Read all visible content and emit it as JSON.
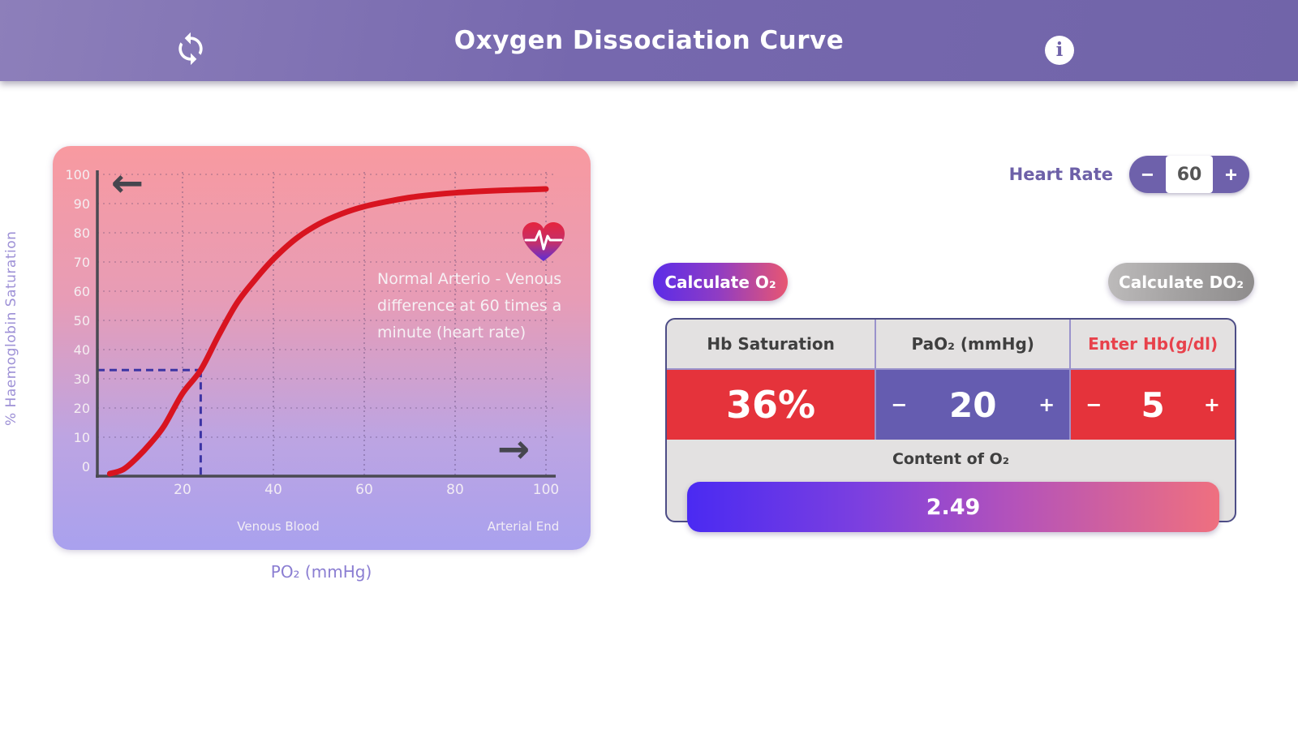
{
  "header": {
    "title": "Oxygen Dissociation Curve"
  },
  "icons": {
    "info_glyph": "i",
    "left_arrow": "←",
    "right_arrow": "→"
  },
  "heart_rate": {
    "label": "Heart Rate",
    "value": "60",
    "minus": "−",
    "plus": "+"
  },
  "buttons": {
    "calc_o2": "Calculate O₂",
    "calc_do2": "Calculate DO₂"
  },
  "table": {
    "headers": [
      "Hb Saturation",
      "PaO₂ (mmHg)",
      "Enter Hb(g/dl)"
    ],
    "hb_saturation": "36%",
    "pao2": "20",
    "hb": "5",
    "minus": "−",
    "plus": "+",
    "content_label": "Content of O₂",
    "content_value": "2.49"
  },
  "colors": {
    "header_purple": "#7668ae",
    "accent_purple": "#655cb0",
    "alert_red": "#e5333b",
    "curve_red": "#d81420",
    "marker_blue": "#3c34a4",
    "gradient_blue": "#4a2af2",
    "gradient_pink": "#ef707f"
  },
  "chart_data": {
    "type": "line",
    "title": "Oxygen Dissociation Curve",
    "xlabel": "PO₂ (mmHg)",
    "ylabel": "% Haemoglobin Saturation",
    "xlim": [
      0,
      102
    ],
    "ylim": [
      0,
      100
    ],
    "grid": true,
    "x_ticks": [
      20,
      40,
      60,
      80,
      100
    ],
    "y_ticks": [
      0,
      10,
      20,
      30,
      40,
      50,
      60,
      70,
      80,
      90,
      100
    ],
    "x_end_labels": [
      "Venous Blood",
      "Arterial End"
    ],
    "annotation": [
      "Normal Arterio - Venous",
      "difference at 60 times a",
      "minute (heart rate)"
    ],
    "series": [
      {
        "name": "Haemoglobin saturation curve",
        "color": "#d81420",
        "points": [
          [
            4,
            -2.5
          ],
          [
            7,
            -1
          ],
          [
            10,
            3
          ],
          [
            13,
            8
          ],
          [
            16,
            14
          ],
          [
            20,
            25
          ],
          [
            24,
            33
          ],
          [
            28,
            45
          ],
          [
            32,
            56
          ],
          [
            36,
            64
          ],
          [
            40,
            71
          ],
          [
            45,
            78
          ],
          [
            50,
            83
          ],
          [
            55,
            86.5
          ],
          [
            60,
            89
          ],
          [
            66,
            91
          ],
          [
            72,
            92.5
          ],
          [
            80,
            93.7
          ],
          [
            90,
            94.5
          ],
          [
            100,
            95
          ]
        ]
      }
    ],
    "marker": {
      "x": 24,
      "y": 33
    }
  }
}
